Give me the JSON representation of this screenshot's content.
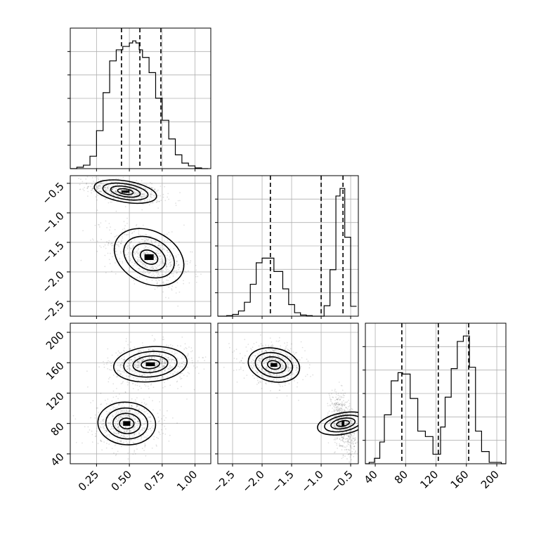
{
  "chart_data": {
    "type": "corner",
    "parameters": [
      "",
      "",
      ""
    ],
    "ranges": [
      [
        0.05,
        1.12
      ],
      [
        -2.75,
        -0.37
      ],
      [
        27,
        212
      ]
    ],
    "ticks": [
      [
        "0.25",
        "0.50",
        "0.75",
        "1.00"
      ],
      [
        "−2.5",
        "−2.0",
        "−1.5",
        "−1.0",
        "−0.5"
      ],
      [
        "40",
        "80",
        "120",
        "160",
        "200"
      ]
    ],
    "tick_values": [
      [
        0.25,
        0.5,
        0.75,
        1.0
      ],
      [
        -2.5,
        -2.0,
        -1.5,
        -1.0,
        -0.5
      ],
      [
        40,
        80,
        120,
        160,
        200
      ]
    ],
    "quantiles": [
      [
        0.44,
        0.58,
        0.74
      ],
      [
        -1.86,
        -1.0,
        -0.63
      ],
      [
        75,
        123,
        163
      ]
    ],
    "histograms": [
      {
        "param": 0,
        "edges": [
          0.05,
          0.1,
          0.15,
          0.2,
          0.25,
          0.3,
          0.35,
          0.4,
          0.45,
          0.5,
          0.525,
          0.55,
          0.575,
          0.6,
          0.65,
          0.7,
          0.75,
          0.8,
          0.85,
          0.9,
          0.95,
          1.0,
          1.05,
          1.1
        ],
        "counts": [
          0,
          2,
          5,
          18,
          55,
          110,
          156,
          172,
          177,
          182,
          185,
          182,
          172,
          161,
          139,
          102,
          70,
          43,
          20,
          8,
          4,
          1,
          0
        ]
      },
      {
        "param": 1,
        "edges": [
          -2.75,
          -2.6,
          -2.5,
          -2.4,
          -2.3,
          -2.2,
          -2.1,
          -2.0,
          -1.9,
          -1.8,
          -1.65,
          -1.55,
          -1.45,
          -1.35,
          -1.25,
          -1.15,
          -1.05,
          -0.95,
          -0.85,
          -0.75,
          -0.68,
          -0.6,
          -0.5,
          -0.4
        ],
        "counts": [
          0,
          1,
          3,
          9,
          24,
          55,
          92,
          100,
          100,
          77,
          47,
          20,
          6,
          2,
          1,
          0,
          0,
          18,
          80,
          207,
          220,
          136,
          17
        ]
      },
      {
        "param": 2,
        "edges": [
          27,
          32,
          39,
          46,
          52,
          61,
          70,
          76,
          86,
          96,
          106,
          116,
          121,
          126,
          132,
          140,
          148,
          156,
          164,
          172,
          180,
          190,
          199,
          206,
          212
        ],
        "counts": [
          0,
          1,
          4,
          16,
          36,
          61,
          67,
          66,
          48,
          24,
          20,
          7,
          7,
          27,
          49,
          70,
          90,
          94,
          71,
          24,
          9,
          1,
          1,
          0
        ]
      }
    ],
    "blobs": [
      {
        "px": 0,
        "py": 1,
        "clusters": [
          {
            "cx": 0.47,
            "cy": -0.64,
            "sx": 0.12,
            "sy": 0.09,
            "rho": -0.45,
            "n": 650
          },
          {
            "cx": 0.65,
            "cy": -1.75,
            "sx": 0.14,
            "sy": 0.22,
            "rho": -0.5,
            "n": 650
          }
        ]
      },
      {
        "px": 0,
        "py": 2,
        "clusters": [
          {
            "cx": 0.66,
            "cy": 158,
            "sx": 0.14,
            "sy": 11.5,
            "rho": 0.15,
            "n": 650
          },
          {
            "cx": 0.48,
            "cy": 80,
            "sx": 0.11,
            "sy": 14,
            "rho": -0.05,
            "n": 650
          }
        ]
      },
      {
        "px": 1,
        "py": 2,
        "clusters": [
          {
            "cx": -1.8,
            "cy": 157,
            "sx": 0.22,
            "sy": 11,
            "rho": -0.2,
            "n": 650
          },
          {
            "cx": -0.63,
            "cy": 80,
            "sx": 0.09,
            "sy": 17,
            "rho": -0.4,
            "n": 650
          }
        ]
      }
    ],
    "grid": true
  }
}
